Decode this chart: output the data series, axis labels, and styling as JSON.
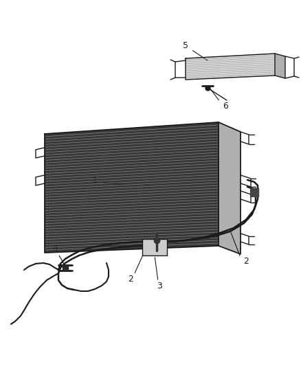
{
  "bg_color": "#ffffff",
  "line_color": "#1a1a1a",
  "fig_width": 4.38,
  "fig_height": 5.33,
  "dpi": 100,
  "radiator_front_fill": "#383838",
  "radiator_side_fill": "#b0b0b0",
  "fin_color": "#888888",
  "fin_color2": "#606060",
  "cooler_front_fill": "#d8d8d8",
  "cooler_side_fill": "#b0b0b0",
  "cooler_fin_color": "#aaaaaa"
}
